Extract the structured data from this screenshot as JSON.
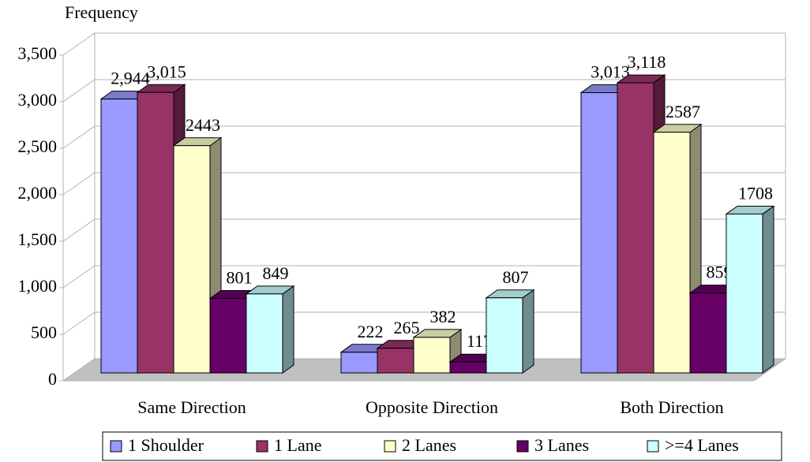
{
  "chart_data": {
    "type": "bar3d",
    "y_label": "Frequency",
    "categories": [
      "Same Direction",
      "Opposite Direction",
      "Both Direction"
    ],
    "series": [
      {
        "name": "1 Shoulder",
        "color": "#9999ff",
        "values": [
          2944,
          222,
          3013
        ],
        "value_labels": [
          "2,944",
          "222",
          "3,013"
        ]
      },
      {
        "name": "1 Lane",
        "color": "#993366",
        "values": [
          3015,
          265,
          3118
        ],
        "value_labels": [
          "3,015",
          "265",
          "3,118"
        ]
      },
      {
        "name": "2 Lanes",
        "color": "#ffffcc",
        "values": [
          2443,
          382,
          2587
        ]
      },
      {
        "name": "3 Lanes",
        "color": "#660066",
        "values": [
          801,
          117,
          859
        ]
      },
      {
        "name": ">=4 Lanes",
        "color": "#ccffff",
        "values": [
          849,
          807,
          1708
        ]
      }
    ],
    "ylim": [
      0,
      3500
    ],
    "yticks": [
      0,
      500,
      {
        "value": 1000,
        "label": "1,000"
      },
      {
        "value": 1500,
        "label": "1,500"
      },
      {
        "value": 2000,
        "label": "2,000"
      },
      {
        "value": 2500,
        "label": "2,500"
      },
      {
        "value": 3000,
        "label": "3,000"
      },
      {
        "value": 3500,
        "label": "3,500"
      }
    ],
    "grid": true,
    "legend": "bottom"
  }
}
